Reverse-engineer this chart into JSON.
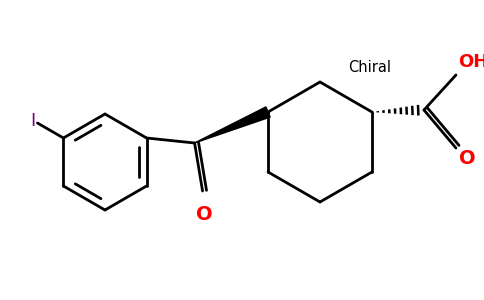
{
  "background_color": "#ffffff",
  "line_color": "#000000",
  "red_color": "#ff0000",
  "purple_color": "#7f007f",
  "chiral_text": "Chiral",
  "oh_text": "OH",
  "o_ketone_text": "O",
  "o_acid_text": "O",
  "I_text": "I",
  "figsize": [
    4.84,
    3.0
  ],
  "dpi": 100
}
